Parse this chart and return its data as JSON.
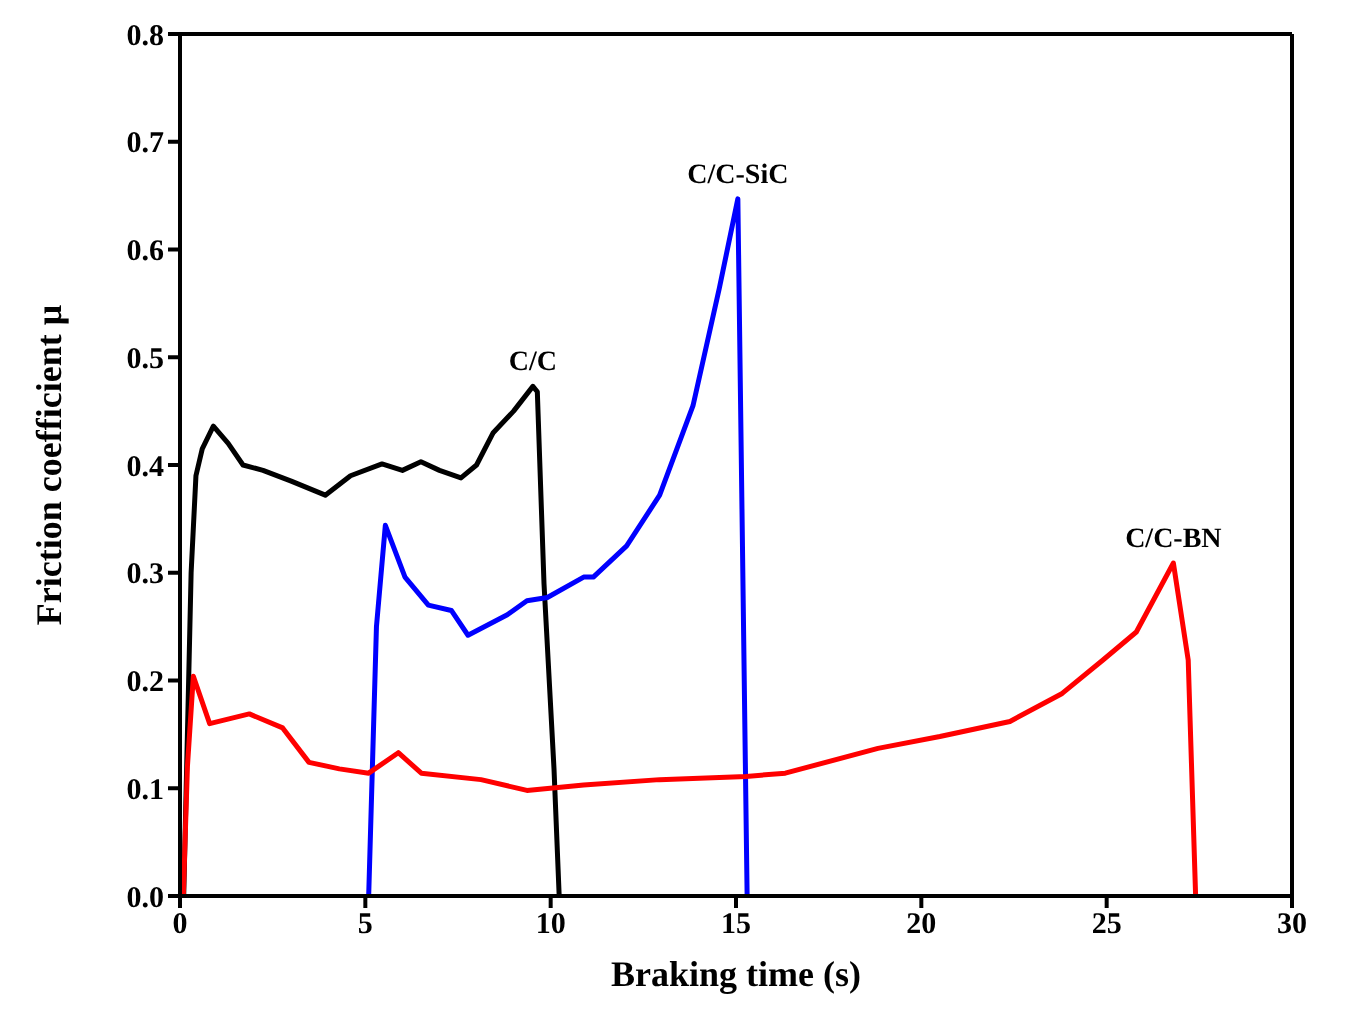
{
  "chart_data": {
    "type": "line",
    "xlabel": "Braking time (s)",
    "ylabel": "Friction coefficient μ",
    "xlim": [
      0,
      30
    ],
    "xticks": [
      0,
      5,
      10,
      15,
      20,
      25,
      30
    ],
    "ylim": [
      0,
      0.8
    ],
    "yticks": [
      {
        "value": 0,
        "label": "0.0"
      },
      0.1,
      0.2,
      0.3,
      0.4,
      0.5,
      0.6,
      0.7,
      0.8
    ],
    "marker": "none",
    "line_style": "solid",
    "series": [
      {
        "color": "#000000",
        "x": [
          0.1,
          0.3,
          0.43,
          0.6,
          0.9,
          1.3,
          1.7,
          2.24,
          3.0,
          3.92,
          4.6,
          5.45,
          6.0,
          6.5,
          7.0,
          7.58,
          8.0,
          8.45,
          9.0,
          9.52,
          9.64,
          9.82,
          10.09,
          10.23
        ],
        "values": [
          0,
          0.3,
          0.39,
          0.415,
          0.436,
          0.42,
          0.4,
          0.395,
          0.385,
          0.372,
          0.39,
          0.401,
          0.395,
          0.403,
          0.395,
          0.388,
          0.4,
          0.43,
          0.45,
          0.473,
          0.468,
          0.29,
          0.118,
          0
        ]
      },
      {
        "color": "#0000ff",
        "x": [
          5.09,
          5.3,
          5.54,
          6.07,
          6.7,
          7.32,
          7.77,
          8.83,
          9.36,
          9.91,
          10.89,
          11.15,
          12.05,
          12.94,
          13.84,
          14.55,
          15.05,
          15.3
        ],
        "values": [
          0,
          0.25,
          0.344,
          0.296,
          0.27,
          0.265,
          0.242,
          0.261,
          0.274,
          0.277,
          0.296,
          0.296,
          0.325,
          0.372,
          0.455,
          0.564,
          0.647,
          0
        ]
      },
      {
        "color": "#ff0000",
        "x": [
          0.09,
          0.2,
          0.36,
          0.8,
          1.87,
          2.77,
          3.48,
          4.3,
          5.09,
          5.89,
          6.51,
          8.12,
          9.36,
          10.89,
          12.94,
          15.27,
          16.33,
          18.83,
          20.5,
          22.39,
          23.8,
          24.9,
          25.8,
          26.8,
          27.2,
          27.4
        ],
        "values": [
          0,
          0.12,
          0.204,
          0.16,
          0.169,
          0.156,
          0.124,
          0.118,
          0.114,
          0.133,
          0.114,
          0.108,
          0.098,
          0.103,
          0.108,
          0.111,
          0.114,
          0.137,
          0.148,
          0.162,
          0.188,
          0.219,
          0.245,
          0.309,
          0.219,
          0
        ]
      }
    ],
    "annotations": [
      {
        "text": "C/C",
        "x": 9.52,
        "y": 0.473
      },
      {
        "text": "C/C-SiC",
        "x": 15.05,
        "y": 0.647
      },
      {
        "text": "C/C-BN",
        "x": 26.8,
        "y": 0.309
      }
    ]
  }
}
